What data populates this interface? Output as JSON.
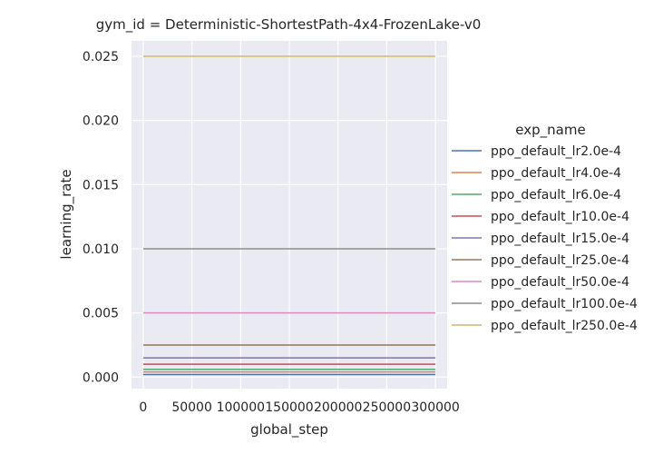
{
  "chart_data": {
    "type": "line",
    "title": "gym_id = Deterministic-ShortestPath-4x4-FrozenLake-v0",
    "xlabel": "global_step",
    "ylabel": "learning_rate",
    "xlim": [
      -12000,
      312000
    ],
    "ylim": [
      -0.0009,
      0.0262
    ],
    "x_ticks": [
      0,
      50000,
      100000,
      150000,
      200000,
      250000,
      300000
    ],
    "x_tick_labels": [
      "0",
      "50000",
      "100000",
      "150000",
      "200000",
      "250000",
      "300000"
    ],
    "y_ticks": [
      0.0,
      0.005,
      0.01,
      0.015,
      0.02,
      0.025
    ],
    "y_tick_labels": [
      "0.000",
      "0.005",
      "0.010",
      "0.015",
      "0.020",
      "0.025"
    ],
    "grid": true,
    "legend": {
      "title": "exp_name",
      "placement": "right"
    },
    "x": [
      0,
      300000
    ],
    "series": [
      {
        "name": "ppo_default_lr2.0e-4",
        "color": "#4c72b0",
        "values": [
          0.0002,
          0.0002
        ]
      },
      {
        "name": "ppo_default_lr4.0e-4",
        "color": "#dd8452",
        "values": [
          0.0004,
          0.0004
        ]
      },
      {
        "name": "ppo_default_lr6.0e-4",
        "color": "#55a868",
        "values": [
          0.0006,
          0.0006
        ]
      },
      {
        "name": "ppo_default_lr10.0e-4",
        "color": "#c44e52",
        "values": [
          0.001,
          0.001
        ]
      },
      {
        "name": "ppo_default_lr15.0e-4",
        "color": "#8172b3",
        "values": [
          0.0015,
          0.0015
        ]
      },
      {
        "name": "ppo_default_lr25.0e-4",
        "color": "#937860",
        "values": [
          0.0025,
          0.0025
        ]
      },
      {
        "name": "ppo_default_lr50.0e-4",
        "color": "#da8bc3",
        "values": [
          0.005,
          0.005
        ]
      },
      {
        "name": "ppo_default_lr100.0e-4",
        "color": "#8c8c8c",
        "values": [
          0.01,
          0.01
        ]
      },
      {
        "name": "ppo_default_lr250.0e-4",
        "color": "#ccb974",
        "values": [
          0.025,
          0.025
        ]
      }
    ],
    "colors": {
      "plot_background": "#eaeaf2",
      "grid": "#ffffff",
      "text": "#262626"
    }
  }
}
